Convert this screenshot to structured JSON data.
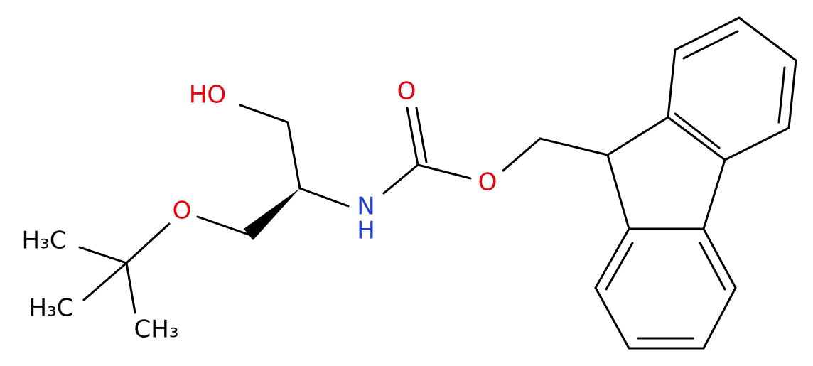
{
  "atoms": {
    "hydroxyl": "HO",
    "carbonyl_oxygen": "O",
    "ester_oxygen": "O",
    "amide_nitrogen": "N",
    "amide_hydrogen": "H",
    "ether_oxygen": "O",
    "methyl_1": "H₃C",
    "methyl_2": "H₃C",
    "methyl_3": "CH₃"
  }
}
